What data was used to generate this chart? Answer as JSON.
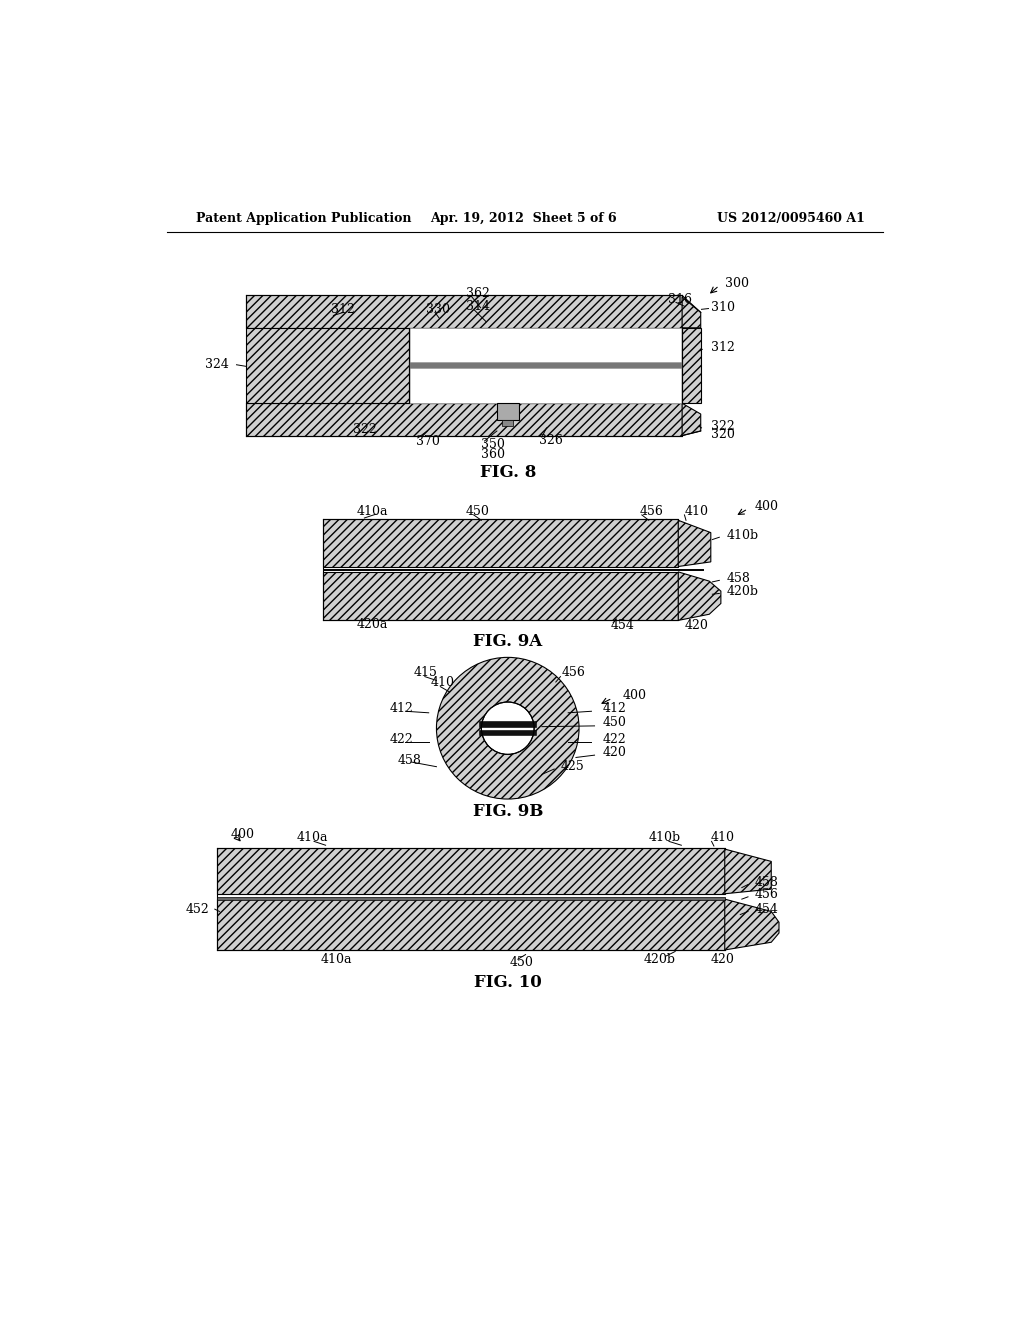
{
  "bg_color": "#ffffff",
  "header_left": "Patent Application Publication",
  "header_center": "Apr. 19, 2012  Sheet 5 of 6",
  "header_right": "US 2012/0095460 A1",
  "fig8_label": "FIG. 8",
  "fig9a_label": "FIG. 9A",
  "fig9b_label": "FIG. 9B",
  "fig10_label": "FIG. 10",
  "hatch_color": "#d0d0d0",
  "hatch_pattern": "////",
  "line_color": "k",
  "line_width": 0.8,
  "font_size_label": 9,
  "font_size_caption": 12
}
